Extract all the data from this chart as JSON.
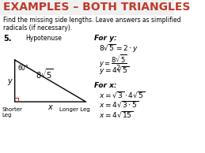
{
  "title": "EXAMPLES – BOTH TRIANGLES",
  "title_color": "#C0392B",
  "bg_color": "#FFFFFF",
  "subtitle": "Find the missing side lengths. Leave answers as simplified\nradicals (if necessary).",
  "problem_num": "5.",
  "hypotenuse_label": "Hypotenuse",
  "shorter_leg_label": "Shorter\nLeg",
  "longer_leg_label": "Longer Leg",
  "angle_label": "60°",
  "for_y_title": "For y:",
  "for_x_title": "For x:"
}
